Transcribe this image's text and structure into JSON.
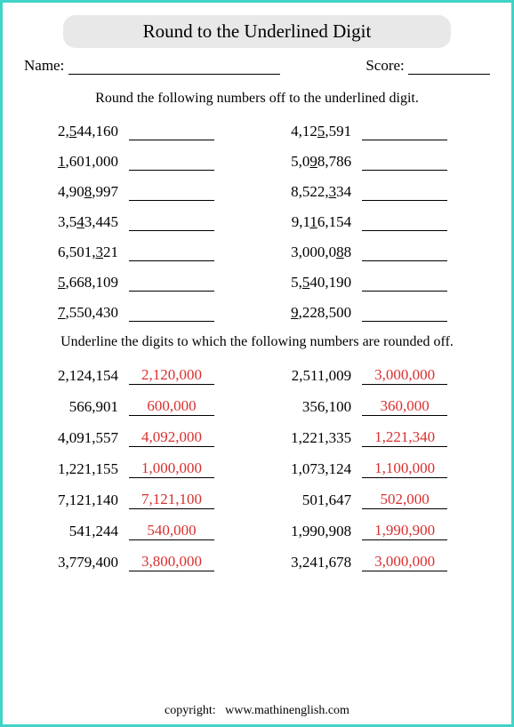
{
  "title": "Round to the Underlined Digit",
  "name_label": "Name:",
  "score_label": "Score:",
  "instruction1": "Round the following numbers off to the underlined digit.",
  "instruction2": "Underline the digits to which the following numbers are rounded off.",
  "section1": {
    "left": [
      {
        "pre": "2,",
        "u": "5",
        "post": "44,160"
      },
      {
        "pre": "",
        "u": "1",
        "post": ",601,000"
      },
      {
        "pre": "4,90",
        "u": "8",
        "post": ",997"
      },
      {
        "pre": "3,5",
        "u": "4",
        "post": "3,445"
      },
      {
        "pre": "6,501,",
        "u": "3",
        "post": "21"
      },
      {
        "pre": "",
        "u": "5",
        "post": ",668,109"
      },
      {
        "pre": "",
        "u": "7",
        "post": ",550,430"
      }
    ],
    "right": [
      {
        "pre": "4,12",
        "u": "5",
        "post": ",591"
      },
      {
        "pre": "5,0",
        "u": "9",
        "post": "8,786"
      },
      {
        "pre": "8,522,",
        "u": "3",
        "post": "34"
      },
      {
        "pre": "9,1",
        "u": "1",
        "post": "6,154"
      },
      {
        "pre": "3,000,0",
        "u": "8",
        "post": "8"
      },
      {
        "pre": "5,",
        "u": "5",
        "post": "40,190"
      },
      {
        "pre": "",
        "u": "9",
        "post": ",228,500"
      }
    ]
  },
  "section2": {
    "left": [
      {
        "n": "2,124,154",
        "a": "2,120,000"
      },
      {
        "n": "566,901",
        "a": "600,000"
      },
      {
        "n": "4,091,557",
        "a": "4,092,000"
      },
      {
        "n": "1,221,155",
        "a": "1,000,000"
      },
      {
        "n": "7,121,140",
        "a": "7,121,100"
      },
      {
        "n": "541,244",
        "a": "540,000"
      },
      {
        "n": "3,779,400",
        "a": "3,800,000"
      }
    ],
    "right": [
      {
        "n": "2,511,009",
        "a": "3,000,000"
      },
      {
        "n": "356,100",
        "a": "360,000"
      },
      {
        "n": "1,221,335",
        "a": "1,221,340"
      },
      {
        "n": "1,073,124",
        "a": "1,100,000"
      },
      {
        "n": "501,647",
        "a": "502,000"
      },
      {
        "n": "1,990,908",
        "a": "1,990,900"
      },
      {
        "n": "3,241,678",
        "a": "3,000,000"
      }
    ]
  },
  "footer_label": "copyright:",
  "footer_url": "www.mathinenglish.com",
  "colors": {
    "border": "#3fd4c6",
    "title_bg": "#e8e8e8",
    "answer": "#d93030",
    "text": "#000000"
  }
}
